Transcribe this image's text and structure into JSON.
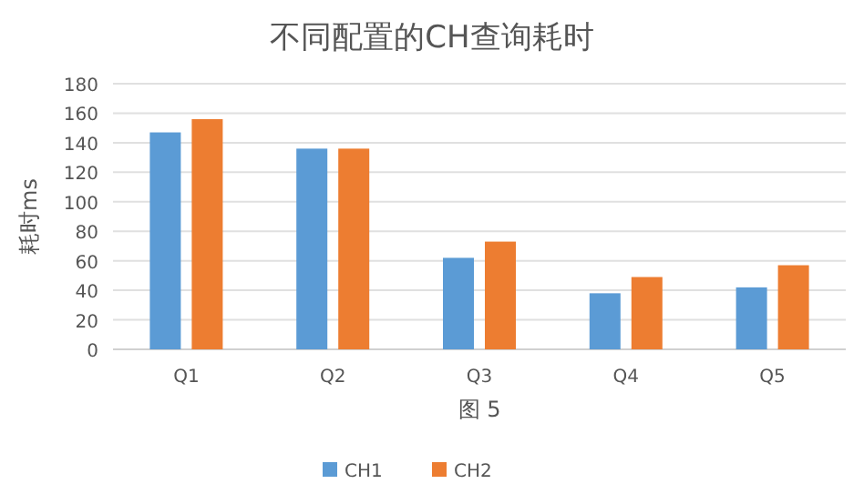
{
  "chart_data": {
    "type": "bar",
    "title": "不同配置的CH查询耗时",
    "xlabel": "图 5",
    "ylabel": "耗时ms",
    "categories": [
      "Q1",
      "Q2",
      "Q3",
      "Q4",
      "Q5"
    ],
    "series": [
      {
        "name": "CH1",
        "color": "#5b9bd5",
        "values": [
          147,
          136,
          62,
          38,
          42
        ]
      },
      {
        "name": "CH2",
        "color": "#ed7d31",
        "values": [
          156,
          136,
          73,
          49,
          57
        ]
      }
    ],
    "ylim": [
      0,
      180
    ],
    "yticks": [
      0,
      20,
      40,
      60,
      80,
      100,
      120,
      140,
      160,
      180
    ],
    "grid": "y",
    "legend": "bottom"
  }
}
